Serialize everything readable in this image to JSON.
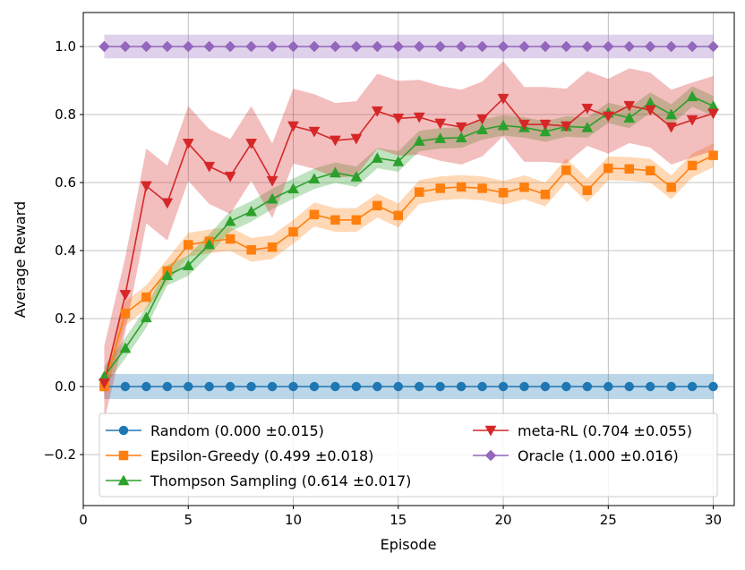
{
  "chart_data": {
    "type": "line",
    "title": "",
    "xlabel": "Episode",
    "ylabel": "Average Reward",
    "xlim": [
      0,
      31
    ],
    "ylim": [
      -0.35,
      1.1
    ],
    "xticks": [
      0,
      5,
      10,
      15,
      20,
      25,
      30
    ],
    "yticks": [
      -0.2,
      0.0,
      0.2,
      0.4,
      0.6,
      0.8,
      1.0
    ],
    "xtick_labels": [
      "0",
      "5",
      "10",
      "15",
      "20",
      "25",
      "30"
    ],
    "ytick_labels": [
      "−0.2",
      "0.0",
      "0.2",
      "0.4",
      "0.6",
      "0.8",
      "1.0"
    ],
    "grid": true,
    "legend_placement": "lower-center",
    "x": [
      1,
      2,
      3,
      4,
      5,
      6,
      7,
      8,
      9,
      10,
      11,
      12,
      13,
      14,
      15,
      16,
      17,
      18,
      19,
      20,
      21,
      22,
      23,
      24,
      25,
      26,
      27,
      28,
      29,
      30
    ],
    "series": [
      {
        "name": "Random (0.000 ±0.015)",
        "color": "#1f77b4",
        "marker": "circle",
        "values": [
          0,
          0,
          0,
          0,
          0,
          0,
          0,
          0,
          0,
          0,
          0,
          0,
          0,
          0,
          0,
          0,
          0,
          0,
          0,
          0,
          0,
          0,
          0,
          0,
          0,
          0,
          0,
          0,
          0,
          0
        ],
        "band": 0.037
      },
      {
        "name": "Epsilon-Greedy (0.499 ±0.018)",
        "color": "#ff7f0e",
        "marker": "square",
        "values": [
          0.0,
          0.215,
          0.263,
          0.34,
          0.417,
          0.427,
          0.434,
          0.402,
          0.41,
          0.455,
          0.506,
          0.49,
          0.49,
          0.532,
          0.503,
          0.572,
          0.583,
          0.587,
          0.583,
          0.57,
          0.586,
          0.565,
          0.636,
          0.577,
          0.642,
          0.64,
          0.635,
          0.586,
          0.65,
          0.68
        ],
        "band": 0.035
      },
      {
        "name": "Thompson Sampling (0.614 ±0.017)",
        "color": "#2ca02c",
        "marker": "triangle-up",
        "values": [
          0.03,
          0.113,
          0.203,
          0.327,
          0.356,
          0.418,
          0.486,
          0.515,
          0.552,
          0.582,
          0.611,
          0.629,
          0.617,
          0.672,
          0.662,
          0.722,
          0.73,
          0.732,
          0.756,
          0.768,
          0.762,
          0.75,
          0.765,
          0.762,
          0.805,
          0.79,
          0.835,
          0.8,
          0.853,
          0.825
        ],
        "band": 0.03
      },
      {
        "name": "meta-RL (0.704 ±0.055)",
        "color": "#d62728",
        "marker": "triangle-down",
        "values": [
          0.01,
          0.27,
          0.59,
          0.54,
          0.715,
          0.647,
          0.618,
          0.715,
          0.605,
          0.766,
          0.75,
          0.724,
          0.729,
          0.81,
          0.789,
          0.792,
          0.774,
          0.763,
          0.787,
          0.847,
          0.771,
          0.771,
          0.766,
          0.818,
          0.795,
          0.826,
          0.813,
          0.763,
          0.784,
          0.803
        ],
        "band": 0.11
      },
      {
        "name": "Oracle (1.000 ±0.016)",
        "color": "#9467bd",
        "marker": "diamond",
        "values": [
          1,
          1,
          1,
          1,
          1,
          1,
          1,
          1,
          1,
          1,
          1,
          1,
          1,
          1,
          1,
          1,
          1,
          1,
          1,
          1,
          1,
          1,
          1,
          1,
          1,
          1,
          1,
          1,
          1,
          1
        ],
        "band": 0.035
      }
    ]
  }
}
